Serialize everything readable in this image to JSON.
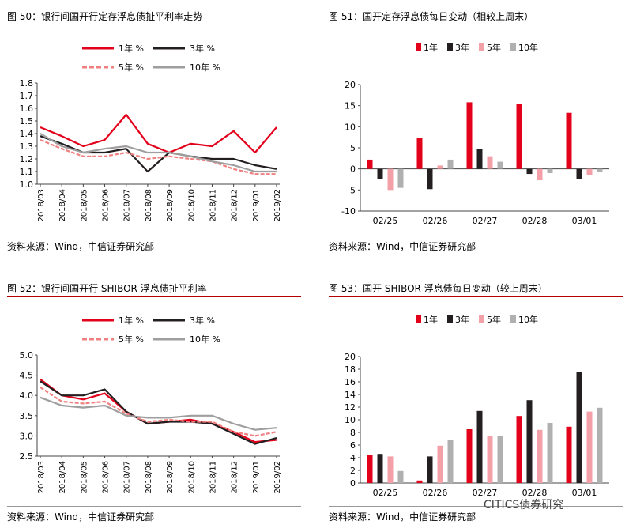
{
  "watermark": "CITICS债券研究",
  "panels": [
    {
      "title": "图 50：银行间国开行定存浮息债扯平利率走势",
      "source": "资料来源：Wind，中信证券研究部"
    },
    {
      "title": "图 51：国开定存浮息债每日变动（相较上周末）",
      "source": "资料来源：Wind，中信证券研究部"
    },
    {
      "title": "图 52：银行间国开行 SHIBOR 浮息债扯平利率",
      "source": "资料来源：Wind，中信证券研究部"
    },
    {
      "title": "图 53：国开 SHIBOR 浮息债每日变动（较上周末）",
      "source": "资料来源：Wind，中信证券研究部"
    }
  ],
  "chart_data": [
    {
      "type": "line",
      "x": [
        "2018/03",
        "2018/04",
        "2018/05",
        "2018/06",
        "2018/07",
        "2018/08",
        "2018/09",
        "2018/10",
        "2018/11",
        "2018/12",
        "2019/01",
        "2019/02"
      ],
      "ylim": [
        1.0,
        1.8
      ],
      "yticks": [
        "1.0",
        "1.1",
        "1.2",
        "1.3",
        "1.4",
        "1.5",
        "1.6",
        "1.7",
        "1.8"
      ],
      "series": [
        {
          "name": "1年 %",
          "color": "#e3001b",
          "style": "solid",
          "values": [
            1.45,
            1.38,
            1.3,
            1.35,
            1.55,
            1.32,
            1.25,
            1.32,
            1.3,
            1.42,
            1.25,
            1.45
          ]
        },
        {
          "name": "3年 %",
          "color": "#231f20",
          "style": "solid",
          "values": [
            1.38,
            1.32,
            1.25,
            1.25,
            1.28,
            1.1,
            1.25,
            1.22,
            1.2,
            1.2,
            1.15,
            1.12
          ]
        },
        {
          "name": "5年 %",
          "color": "#f08080",
          "style": "dashed",
          "values": [
            1.35,
            1.28,
            1.22,
            1.22,
            1.25,
            1.2,
            1.22,
            1.2,
            1.18,
            1.12,
            1.08,
            1.08
          ]
        },
        {
          "name": "10年 %",
          "color": "#9e9e9e",
          "style": "solid",
          "values": [
            1.4,
            1.3,
            1.25,
            1.28,
            1.3,
            1.25,
            1.25,
            1.22,
            1.18,
            1.15,
            1.1,
            1.1
          ]
        }
      ]
    },
    {
      "type": "bar",
      "categories": [
        "02/25",
        "02/26",
        "02/27",
        "02/28",
        "03/01"
      ],
      "ylim": [
        -10,
        20
      ],
      "yticks": [
        "-10",
        "-5",
        "0",
        "5",
        "10",
        "15",
        "20"
      ],
      "series": [
        {
          "name": "1年",
          "color": "#e3001b",
          "values": [
            2.2,
            7.4,
            15.8,
            15.4,
            13.3
          ]
        },
        {
          "name": "3年",
          "color": "#231f20",
          "values": [
            -2.5,
            -4.8,
            4.8,
            -1.2,
            -2.4
          ]
        },
        {
          "name": "5年",
          "color": "#f4a0a8",
          "values": [
            -5.0,
            0.8,
            3.0,
            -2.7,
            -1.5
          ]
        },
        {
          "name": "10年",
          "color": "#b0b0b0",
          "values": [
            -4.5,
            2.2,
            1.7,
            -1.0,
            -0.8
          ]
        }
      ]
    },
    {
      "type": "line",
      "x": [
        "2018/03",
        "2018/04",
        "2018/05",
        "2018/06",
        "2018/07",
        "2018/08",
        "2018/09",
        "2018/10",
        "2018/11",
        "2018/12",
        "2019/01",
        "2019/02"
      ],
      "ylim": [
        2.5,
        5.0
      ],
      "yticks": [
        "2.5",
        "3.0",
        "3.5",
        "4.0",
        "4.5",
        "5.0"
      ],
      "series": [
        {
          "name": "1年 %",
          "color": "#e3001b",
          "style": "solid",
          "values": [
            4.4,
            4.0,
            3.9,
            4.05,
            3.6,
            3.3,
            3.35,
            3.4,
            3.3,
            3.1,
            2.85,
            2.9
          ]
        },
        {
          "name": "3年 %",
          "color": "#231f20",
          "style": "solid",
          "values": [
            4.35,
            4.0,
            4.0,
            4.15,
            3.6,
            3.3,
            3.35,
            3.35,
            3.3,
            3.05,
            2.8,
            2.95
          ]
        },
        {
          "name": "5年 %",
          "color": "#f08080",
          "style": "dashed",
          "values": [
            4.2,
            3.85,
            3.8,
            3.85,
            3.55,
            3.35,
            3.4,
            3.35,
            3.35,
            3.1,
            3.0,
            3.1
          ]
        },
        {
          "name": "10年 %",
          "color": "#9e9e9e",
          "style": "solid",
          "values": [
            3.95,
            3.75,
            3.7,
            3.75,
            3.5,
            3.45,
            3.45,
            3.5,
            3.5,
            3.3,
            3.15,
            3.2
          ]
        }
      ]
    },
    {
      "type": "bar",
      "categories": [
        "02/25",
        "02/26",
        "02/27",
        "02/28",
        "03/01"
      ],
      "ylim": [
        0,
        20
      ],
      "yticks": [
        "0",
        "2",
        "4",
        "6",
        "8",
        "10",
        "12",
        "14",
        "16",
        "18",
        "20"
      ],
      "series": [
        {
          "name": "1年",
          "color": "#e3001b",
          "values": [
            4.4,
            0.4,
            8.5,
            10.6,
            8.9
          ]
        },
        {
          "name": "3年",
          "color": "#231f20",
          "values": [
            4.6,
            4.2,
            11.4,
            13.1,
            17.5
          ]
        },
        {
          "name": "5年",
          "color": "#f4a0a8",
          "values": [
            4.2,
            5.9,
            7.4,
            8.4,
            11.3
          ]
        },
        {
          "name": "10年",
          "color": "#b0b0b0",
          "values": [
            1.9,
            6.8,
            7.5,
            9.5,
            11.9
          ]
        }
      ]
    }
  ]
}
